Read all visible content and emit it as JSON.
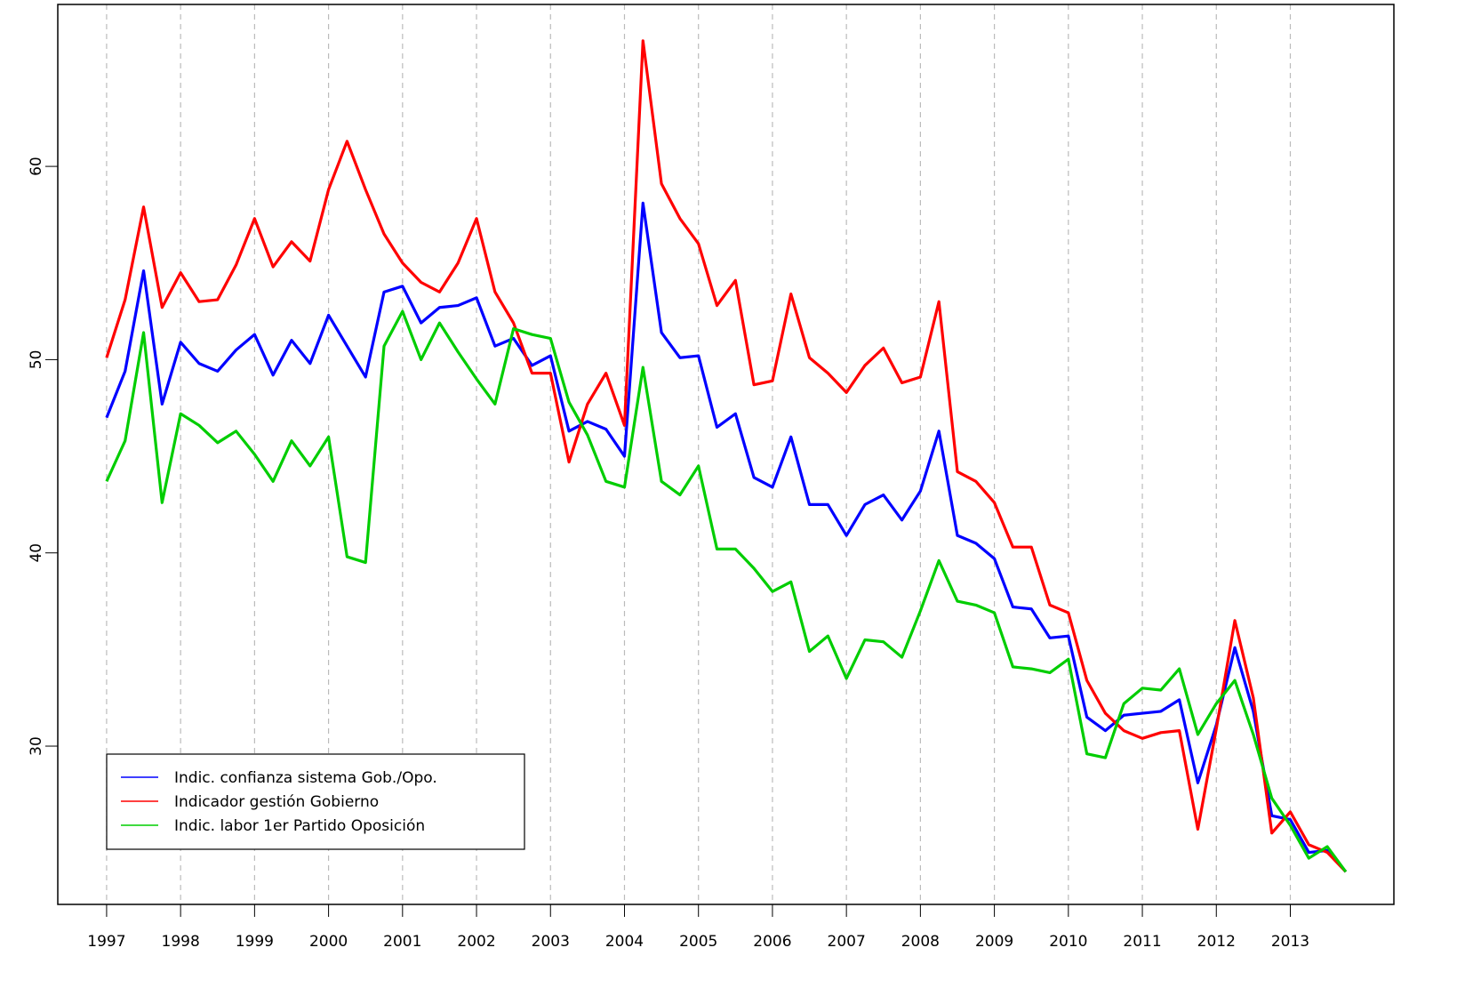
{
  "chart_data": {
    "type": "line",
    "x": [
      1997,
      1997.25,
      1997.5,
      1997.75,
      1998,
      1998.25,
      1998.5,
      1998.75,
      1999,
      1999.25,
      1999.5,
      1999.75,
      2000,
      2000.25,
      2000.5,
      2000.75,
      2001,
      2001.25,
      2001.5,
      2001.75,
      2002,
      2002.25,
      2002.5,
      2002.75,
      2003,
      2003.25,
      2003.5,
      2003.75,
      2004,
      2004.25,
      2004.5,
      2004.75,
      2005,
      2005.25,
      2005.5,
      2005.75,
      2006,
      2006.25,
      2006.5,
      2006.75,
      2007,
      2007.25,
      2007.5,
      2007.75,
      2008,
      2008.25,
      2008.5,
      2008.75,
      2009,
      2009.25,
      2009.5,
      2009.75,
      2010,
      2010.25,
      2010.5,
      2010.75,
      2011,
      2011.25,
      2011.5,
      2011.75,
      2012,
      2012.25,
      2012.5,
      2012.75,
      2013,
      2013.25,
      2013.5,
      2013.75
    ],
    "series": [
      {
        "name": "Indic. confianza sistema Gob./Opo.",
        "color": "#0000ff",
        "values": [
          47.0,
          49.4,
          54.6,
          47.7,
          50.9,
          49.8,
          49.4,
          50.5,
          51.3,
          49.2,
          51.0,
          49.8,
          52.3,
          50.7,
          49.1,
          53.5,
          53.8,
          51.9,
          52.7,
          52.8,
          53.2,
          50.7,
          51.1,
          49.7,
          50.2,
          46.3,
          46.8,
          46.4,
          45.0,
          58.1,
          51.4,
          50.1,
          50.2,
          46.5,
          47.2,
          43.9,
          43.4,
          46.0,
          42.5,
          42.5,
          40.9,
          42.5,
          43.0,
          41.7,
          43.2,
          46.3,
          40.9,
          40.5,
          39.7,
          37.2,
          37.1,
          35.6,
          35.7,
          31.5,
          30.8,
          31.6,
          31.7,
          31.8,
          32.4,
          28.1,
          31.1,
          35.1,
          31.8,
          26.4,
          26.2,
          24.5,
          24.6,
          23.5
        ]
      },
      {
        "name": "Indicador gestión Gobierno",
        "color": "#ff0000",
        "values": [
          50.1,
          53.1,
          57.9,
          52.7,
          54.5,
          53.0,
          53.1,
          54.9,
          57.3,
          54.8,
          56.1,
          55.1,
          58.8,
          61.3,
          58.8,
          56.5,
          55.0,
          54.0,
          53.5,
          55.0,
          57.3,
          53.5,
          51.9,
          49.3,
          49.3,
          44.7,
          47.7,
          49.3,
          46.6,
          66.5,
          59.1,
          57.3,
          56.0,
          52.8,
          54.1,
          48.7,
          48.9,
          53.4,
          50.1,
          49.3,
          48.3,
          49.7,
          50.6,
          48.8,
          49.1,
          53.0,
          44.2,
          43.7,
          42.6,
          40.3,
          40.3,
          37.3,
          36.9,
          33.4,
          31.7,
          30.8,
          30.4,
          30.7,
          30.8,
          25.7,
          30.9,
          36.5,
          32.5,
          25.5,
          26.6,
          24.9,
          24.5,
          23.5
        ]
      },
      {
        "name": "Indic. labor 1er Partido Oposición",
        "color": "#00cd00",
        "values": [
          43.7,
          45.8,
          51.4,
          42.6,
          47.2,
          46.6,
          45.7,
          46.3,
          45.1,
          43.7,
          45.8,
          44.5,
          46.0,
          39.8,
          39.5,
          50.7,
          52.5,
          50.0,
          51.9,
          50.4,
          49.0,
          47.7,
          51.6,
          51.3,
          51.1,
          47.8,
          46.1,
          43.7,
          43.4,
          49.6,
          43.7,
          43.0,
          44.5,
          40.2,
          40.2,
          39.2,
          38.0,
          38.5,
          34.9,
          35.7,
          33.5,
          35.5,
          35.4,
          34.6,
          37.0,
          39.6,
          37.5,
          37.3,
          36.9,
          34.1,
          34.0,
          33.8,
          34.5,
          29.6,
          29.4,
          32.2,
          33.0,
          32.9,
          34.0,
          30.6,
          32.2,
          33.4,
          30.6,
          27.3,
          25.9,
          24.2,
          24.8,
          23.5
        ]
      }
    ],
    "xlim": [
      1996.34,
      2014.4
    ],
    "xticks": [
      1997,
      1998,
      1999,
      2000,
      2001,
      2002,
      2003,
      2004,
      2005,
      2006,
      2007,
      2008,
      2009,
      2010,
      2011,
      2012,
      2013
    ],
    "ylim": [
      21.81,
      68.38
    ],
    "yticks": [
      30,
      40,
      50,
      60
    ],
    "grid": true,
    "legend": "bottom-left"
  }
}
